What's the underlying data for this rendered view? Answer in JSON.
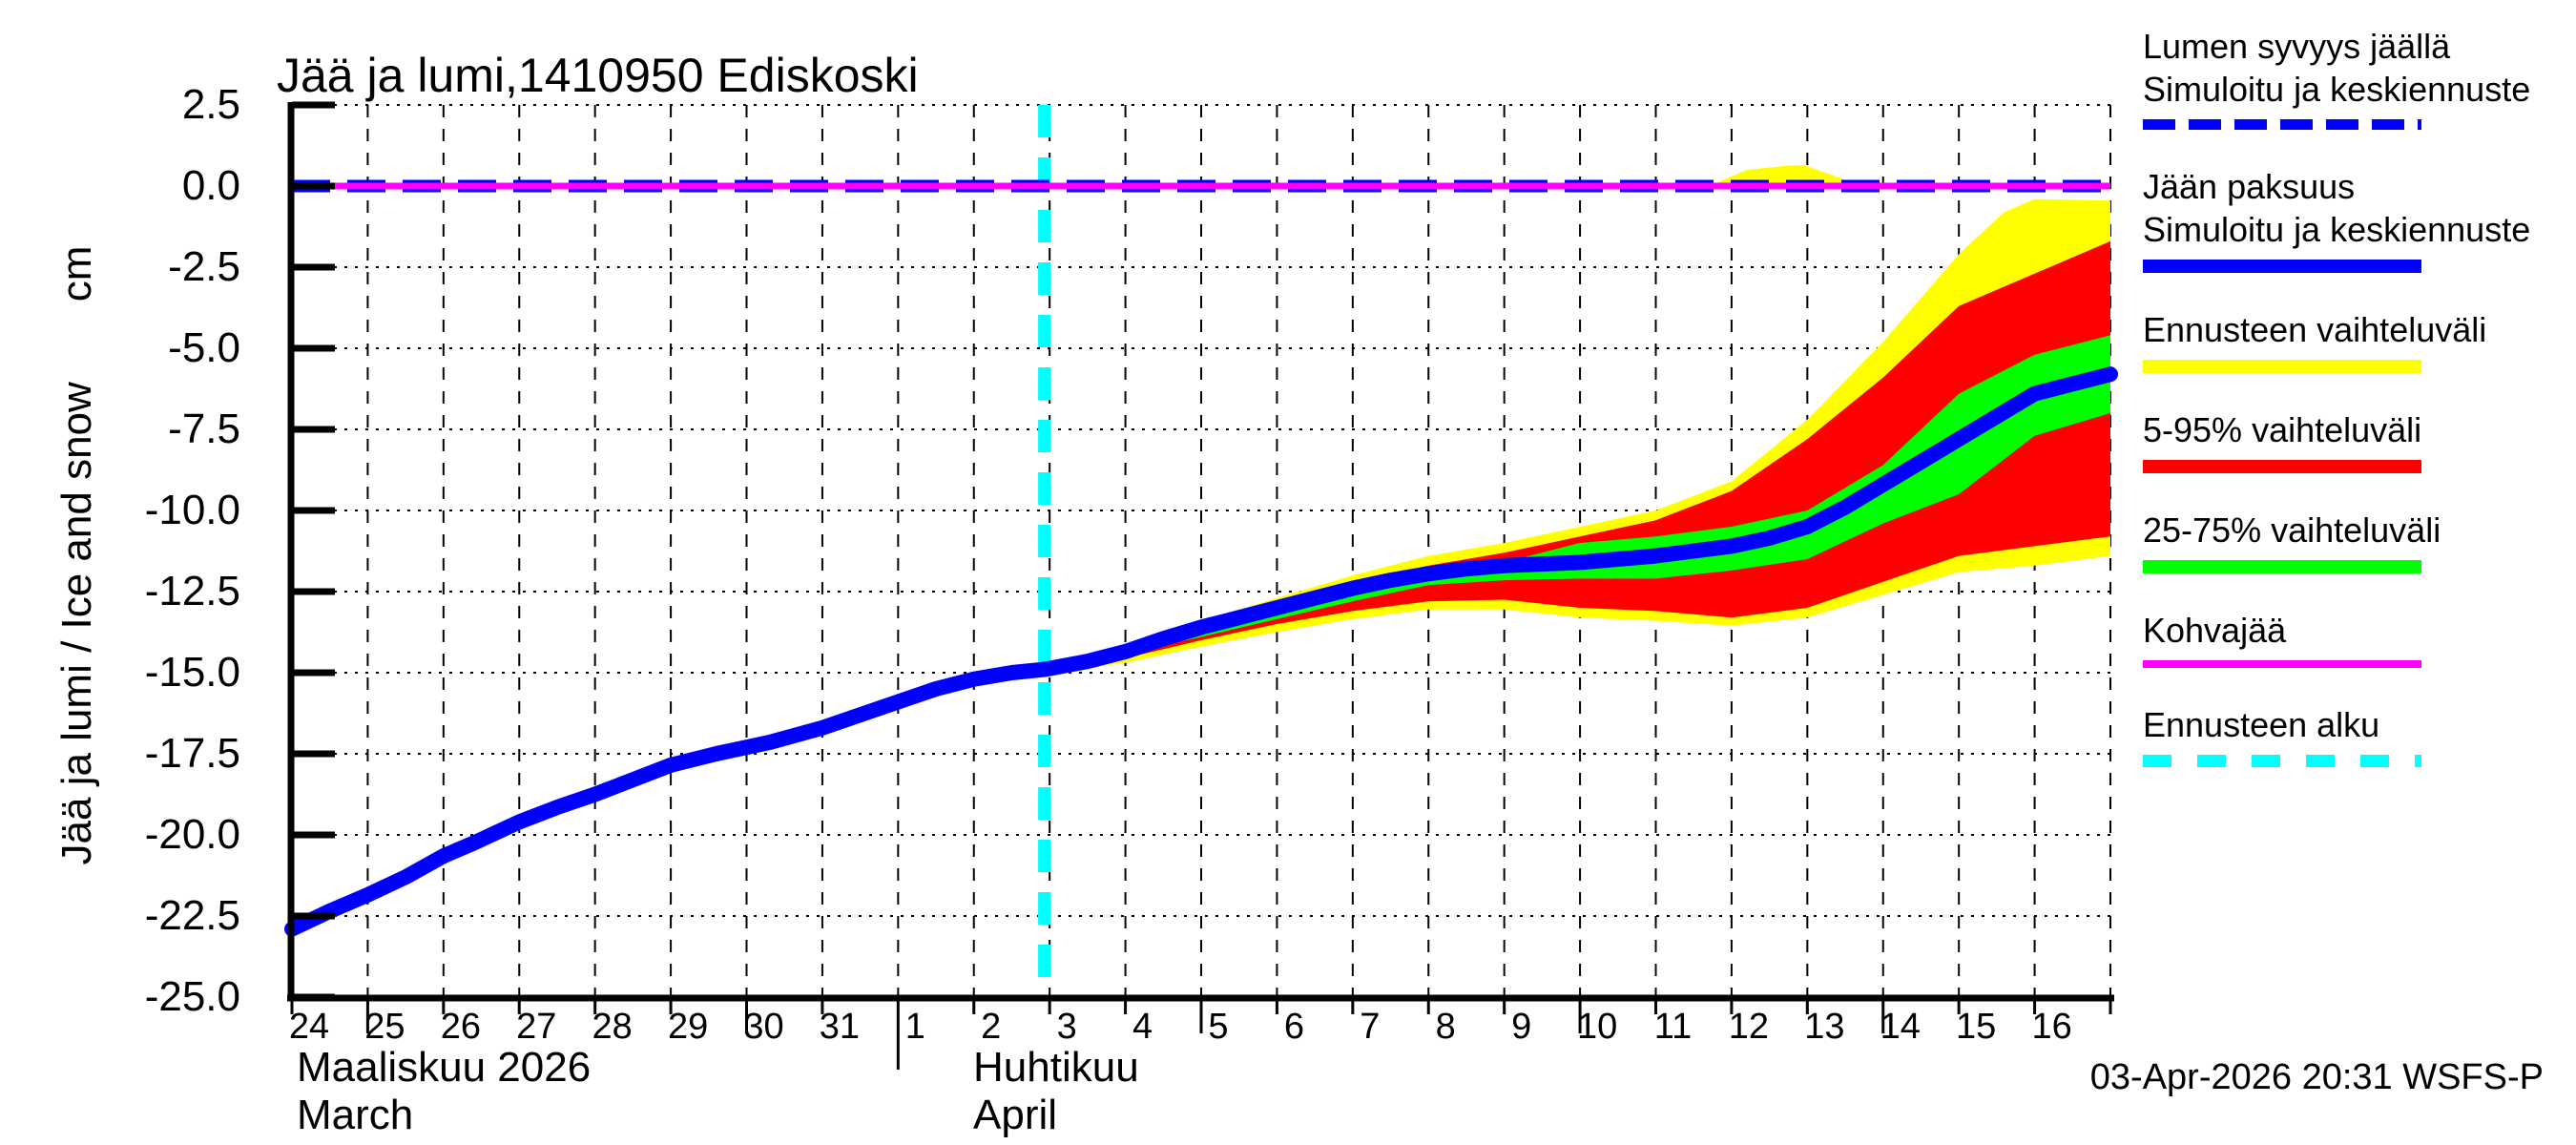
{
  "chart_data": {
    "type": "line+area fan forecast",
    "title": "Jää ja lumi,1410950 Ediskoski",
    "ylabel": "Jää ja lumi / Ice and snow",
    "unit": "cm",
    "footer": "03-Apr-2026 20:31 WSFS-P",
    "grid": "on",
    "legend_position": "right",
    "colors": {
      "ice_line": "#0000ff",
      "snow_line": "#0000ff",
      "total_range": "#ffff00",
      "range_5_95": "#ff0000",
      "range_25_75": "#00ff00",
      "kohvajaa": "#ff00ff",
      "forecast_start": "#00ffff",
      "axis": "#000000"
    },
    "y_axis": {
      "min": -25.0,
      "max": 2.5,
      "step": 2.5,
      "ticks": [
        {
          "v": 2.5,
          "label": "2.5"
        },
        {
          "v": 0.0,
          "label": "0.0"
        },
        {
          "v": -2.5,
          "label": "-2.5"
        },
        {
          "v": -5.0,
          "label": "-5.0"
        },
        {
          "v": -7.5,
          "label": "-7.5"
        },
        {
          "v": -10.0,
          "label": "-10.0"
        },
        {
          "v": -12.5,
          "label": "-12.5"
        },
        {
          "v": -15.0,
          "label": "-15.0"
        },
        {
          "v": -17.5,
          "label": "-17.5"
        },
        {
          "v": -20.0,
          "label": "-20.0"
        },
        {
          "v": -22.5,
          "label": "-22.5"
        },
        {
          "v": -25.0,
          "label": "-25.0"
        }
      ]
    },
    "x_axis": {
      "span_days": 24,
      "days": [
        {
          "label": "24",
          "tick": "day"
        },
        {
          "label": "25",
          "tick": "five"
        },
        {
          "label": "26",
          "tick": "day"
        },
        {
          "label": "27",
          "tick": "day"
        },
        {
          "label": "28",
          "tick": "day"
        },
        {
          "label": "29",
          "tick": "day"
        },
        {
          "label": "30",
          "tick": "five"
        },
        {
          "label": "31",
          "tick": "day"
        },
        {
          "label": "1",
          "tick": "month"
        },
        {
          "label": "2",
          "tick": "day"
        },
        {
          "label": "3",
          "tick": "day"
        },
        {
          "label": "4",
          "tick": "day"
        },
        {
          "label": "5",
          "tick": "five"
        },
        {
          "label": "6",
          "tick": "day"
        },
        {
          "label": "7",
          "tick": "day"
        },
        {
          "label": "8",
          "tick": "day"
        },
        {
          "label": "9",
          "tick": "day"
        },
        {
          "label": "10",
          "tick": "five"
        },
        {
          "label": "11",
          "tick": "day"
        },
        {
          "label": "12",
          "tick": "day"
        },
        {
          "label": "13",
          "tick": "day"
        },
        {
          "label": "14",
          "tick": "five"
        },
        {
          "label": "15",
          "tick": "day"
        },
        {
          "label": "16",
          "tick": "day"
        }
      ],
      "months": [
        {
          "line1": "Maaliskuu 2026",
          "line2": "March"
        },
        {
          "line1": "Huhtikuu",
          "line2": "April"
        }
      ]
    },
    "forecast_start_day": 9.93,
    "series": {
      "ice_line": [
        [
          0,
          -22.9
        ],
        [
          0.5,
          -22.35
        ],
        [
          1,
          -21.85
        ],
        [
          1.5,
          -21.3
        ],
        [
          2,
          -20.65
        ],
        [
          2.4,
          -20.25
        ],
        [
          3,
          -19.6
        ],
        [
          3.5,
          -19.15
        ],
        [
          4,
          -18.75
        ],
        [
          4.5,
          -18.3
        ],
        [
          5,
          -17.85
        ],
        [
          5.6,
          -17.5
        ],
        [
          6.3,
          -17.15
        ],
        [
          7,
          -16.7
        ],
        [
          7.5,
          -16.3
        ],
        [
          8,
          -15.9
        ],
        [
          8.5,
          -15.5
        ],
        [
          9,
          -15.2
        ],
        [
          9.5,
          -15.0
        ],
        [
          9.93,
          -14.9
        ],
        [
          10.5,
          -14.65
        ],
        [
          11,
          -14.35
        ],
        [
          11.5,
          -13.95
        ],
        [
          12,
          -13.6
        ],
        [
          12.5,
          -13.3
        ],
        [
          13,
          -13.0
        ],
        [
          13.5,
          -12.7
        ],
        [
          14,
          -12.4
        ],
        [
          14.5,
          -12.15
        ],
        [
          15,
          -11.95
        ],
        [
          15.5,
          -11.8
        ],
        [
          16,
          -11.7
        ],
        [
          16.5,
          -11.65
        ],
        [
          17,
          -11.6
        ],
        [
          17.5,
          -11.5
        ],
        [
          18,
          -11.4
        ],
        [
          18.5,
          -11.25
        ],
        [
          19,
          -11.1
        ],
        [
          19.5,
          -10.85
        ],
        [
          20,
          -10.5
        ],
        [
          20.5,
          -9.9
        ],
        [
          21,
          -9.2
        ],
        [
          21.5,
          -8.5
        ],
        [
          22,
          -7.8
        ],
        [
          22.5,
          -7.1
        ],
        [
          23,
          -6.4
        ],
        [
          23.5,
          -6.1
        ],
        [
          24,
          -5.8
        ]
      ],
      "snow_line_y": 0.0,
      "kohvajaa_y": 0.0,
      "total_range": {
        "top": [
          [
            9.93,
            -14.9
          ],
          [
            11,
            -14.3
          ],
          [
            12,
            -13.4
          ],
          [
            13,
            -12.7
          ],
          [
            14,
            -12.0
          ],
          [
            15,
            -11.4
          ],
          [
            16,
            -11.0
          ],
          [
            17,
            -10.5
          ],
          [
            18,
            -10.0
          ],
          [
            19,
            -9.1
          ],
          [
            20,
            -7.2
          ],
          [
            21,
            -4.8
          ],
          [
            22,
            -2.1
          ],
          [
            22.6,
            -0.8
          ],
          [
            23,
            -0.4
          ],
          [
            24,
            -0.45
          ]
        ],
        "bottom": [
          [
            9.93,
            -15.0
          ],
          [
            11,
            -14.7
          ],
          [
            12,
            -14.2
          ],
          [
            13,
            -13.75
          ],
          [
            14,
            -13.35
          ],
          [
            15,
            -13.05
          ],
          [
            16,
            -13.05
          ],
          [
            17,
            -13.3
          ],
          [
            18,
            -13.4
          ],
          [
            19,
            -13.55
          ],
          [
            20,
            -13.3
          ],
          [
            21,
            -12.6
          ],
          [
            22,
            -11.9
          ],
          [
            23,
            -11.7
          ],
          [
            24,
            -11.4
          ]
        ]
      },
      "range_5_95": {
        "top": [
          [
            9.93,
            -14.93
          ],
          [
            11,
            -14.4
          ],
          [
            12,
            -13.6
          ],
          [
            13,
            -12.9
          ],
          [
            14,
            -12.2
          ],
          [
            15,
            -11.7
          ],
          [
            16,
            -11.3
          ],
          [
            17,
            -10.8
          ],
          [
            18,
            -10.3
          ],
          [
            19,
            -9.4
          ],
          [
            20,
            -7.8
          ],
          [
            21,
            -5.9
          ],
          [
            22,
            -3.7
          ],
          [
            23,
            -2.7
          ],
          [
            24,
            -1.7
          ]
        ],
        "bottom": [
          [
            9.93,
            -14.97
          ],
          [
            11,
            -14.55
          ],
          [
            12,
            -14.0
          ],
          [
            13,
            -13.5
          ],
          [
            14,
            -13.1
          ],
          [
            15,
            -12.8
          ],
          [
            16,
            -12.75
          ],
          [
            17,
            -13.0
          ],
          [
            18,
            -13.1
          ],
          [
            19,
            -13.3
          ],
          [
            20,
            -13.0
          ],
          [
            21,
            -12.2
          ],
          [
            22,
            -11.4
          ],
          [
            23,
            -11.1
          ],
          [
            24,
            -10.8
          ]
        ]
      },
      "range_25_75": {
        "top": [
          [
            11,
            -14.35
          ],
          [
            12,
            -13.7
          ],
          [
            13,
            -13.05
          ],
          [
            14,
            -12.45
          ],
          [
            15,
            -11.95
          ],
          [
            16,
            -11.6
          ],
          [
            17,
            -11.0
          ],
          [
            18,
            -10.8
          ],
          [
            19,
            -10.5
          ],
          [
            20,
            -10.0
          ],
          [
            21,
            -8.6
          ],
          [
            22,
            -6.4
          ],
          [
            23,
            -5.2
          ],
          [
            24,
            -4.6
          ]
        ],
        "bottom": [
          [
            11,
            -14.4
          ],
          [
            12,
            -13.9
          ],
          [
            13,
            -13.35
          ],
          [
            14,
            -12.8
          ],
          [
            15,
            -12.3
          ],
          [
            16,
            -12.15
          ],
          [
            17,
            -12.1
          ],
          [
            18,
            -12.1
          ],
          [
            19,
            -11.85
          ],
          [
            20,
            -11.5
          ],
          [
            21,
            -10.4
          ],
          [
            22,
            -9.5
          ],
          [
            23,
            -7.7
          ],
          [
            24,
            -7.0
          ]
        ]
      },
      "snow_spread_bump": [
        [
          18.7,
          0.0
        ],
        [
          19.2,
          0.5
        ],
        [
          19.7,
          0.62
        ],
        [
          19.95,
          0.65
        ],
        [
          20.25,
          0.4
        ],
        [
          20.7,
          0.02
        ]
      ]
    }
  },
  "legend": {
    "entries": [
      {
        "id": "snow-depth",
        "label1": "Lumen syvyys jäällä",
        "label2": "Simuloitu ja keskiennuste",
        "style": "dashed-blue"
      },
      {
        "id": "ice-thickness",
        "label1": "Jään paksuus",
        "label2": "Simuloitu ja keskiennuste",
        "style": "solid-blue"
      },
      {
        "id": "total-range",
        "label1": "Ennusteen vaihteluväli",
        "label2": "",
        "style": "solid-yellow"
      },
      {
        "id": "range-5-95",
        "label1": "5-95% vaihteluväli",
        "label2": "",
        "style": "solid-red"
      },
      {
        "id": "range-25-75",
        "label1": "25-75% vaihteluväli",
        "label2": "",
        "style": "solid-green"
      },
      {
        "id": "kohvajaa",
        "label1": "Kohvajää",
        "label2": "",
        "style": "solid-magenta"
      },
      {
        "id": "forecast-start",
        "label1": "Ennusteen alku",
        "label2": "",
        "style": "dashed-cyan"
      }
    ]
  }
}
